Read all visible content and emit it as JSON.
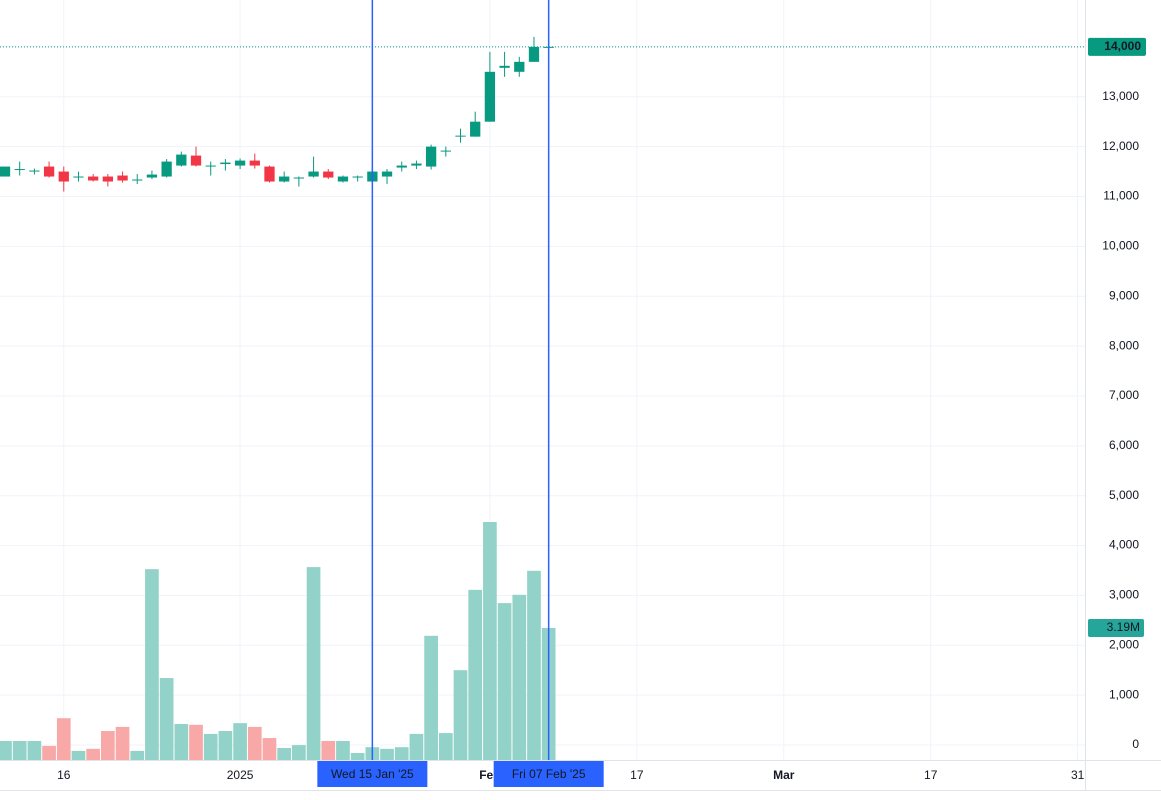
{
  "chart_data": {
    "type": "candlestick",
    "up_color": "#089981",
    "down_color": "#f23645",
    "volume_up_color": "#92d2c8",
    "volume_down_color": "#f7a8a7",
    "crosshair_color": "#2962ff",
    "grid": true,
    "ylim": [
      -300,
      14940
    ],
    "yticks": [
      0,
      {
        "value": 1000,
        "label": "1,000"
      },
      {
        "value": 2000,
        "label": "2,000"
      },
      {
        "value": 3000,
        "label": "3,000"
      },
      {
        "value": 4000,
        "label": "4,000"
      },
      {
        "value": 5000,
        "label": "5,000"
      },
      {
        "value": 6000,
        "label": "6,000"
      },
      {
        "value": 7000,
        "label": "7,000"
      },
      {
        "value": 8000,
        "label": "8,000"
      },
      {
        "value": 9000,
        "label": "9,000"
      },
      {
        "value": 10000,
        "label": "10,000"
      },
      {
        "value": 11000,
        "label": "11,000"
      },
      {
        "value": 12000,
        "label": "12,000"
      },
      {
        "value": 13000,
        "label": "13,000"
      },
      {
        "value": 14000,
        "label": "14,000"
      }
    ],
    "xlim": [
      -0.34,
      73.5
    ],
    "xticks": [
      {
        "value": 4,
        "label": "16"
      },
      {
        "value": 16,
        "label": "2025"
      },
      {
        "value": 33,
        "label": "Feb"
      },
      {
        "value": 43,
        "label": "17"
      },
      {
        "value": 53,
        "label": "Mar"
      },
      {
        "value": 63,
        "label": "17"
      },
      {
        "value": 73,
        "label": "31"
      }
    ],
    "open": [
      11400,
      11550,
      11500,
      11600,
      11500,
      11380,
      11400,
      11400,
      11420,
      11330,
      11380,
      11400,
      11620,
      11820,
      11600,
      11650,
      11620,
      11720,
      11600,
      11300,
      11360,
      11400,
      11500,
      11300,
      11380,
      11300,
      11400,
      11580,
      11620,
      11600,
      11900,
      12200,
      12200,
      12500,
      13580,
      13500,
      13700,
      14000
    ],
    "high": [
      11600,
      11700,
      11560,
      11700,
      11600,
      11500,
      11450,
      11450,
      11500,
      11450,
      11520,
      11750,
      11900,
      12000,
      11700,
      11750,
      11760,
      11860,
      11620,
      11500,
      11400,
      11800,
      11550,
      11420,
      11420,
      11550,
      11550,
      11700,
      11720,
      12040,
      12000,
      12360,
      12700,
      13900,
      13900,
      13800,
      14200,
      14020
    ],
    "low": [
      11400,
      11420,
      11440,
      11380,
      11100,
      11300,
      11300,
      11200,
      11280,
      11250,
      11350,
      11380,
      11600,
      11600,
      11420,
      11520,
      11550,
      11560,
      11280,
      11280,
      11200,
      11380,
      11350,
      11280,
      11300,
      11280,
      11250,
      11500,
      11550,
      11540,
      11800,
      12080,
      12200,
      12500,
      13400,
      13400,
      13700,
      13980
    ],
    "close": [
      11600,
      11550,
      11520,
      11400,
      11300,
      11400,
      11320,
      11300,
      11320,
      11340,
      11440,
      11700,
      11840,
      11620,
      11620,
      11680,
      11720,
      11620,
      11300,
      11400,
      11380,
      11500,
      11380,
      11400,
      11400,
      11500,
      11500,
      11620,
      11660,
      12000,
      11920,
      12220,
      12500,
      13500,
      13620,
      13700,
      14000,
      14000
    ],
    "volume": [
      0.46,
      0.46,
      0.46,
      0.34,
      1.01,
      0.22,
      0.27,
      0.7,
      0.8,
      0.22,
      4.61,
      1.98,
      0.87,
      0.85,
      0.63,
      0.7,
      0.89,
      0.8,
      0.53,
      0.29,
      0.36,
      4.66,
      0.46,
      0.46,
      0.17,
      0.31,
      0.27,
      0.31,
      0.63,
      3.0,
      0.65,
      2.17,
      4.11,
      5.75,
      3.79,
      3.99,
      4.57,
      3.19
    ],
    "volume_ylim": [
      0,
      18.36
    ],
    "last_price": {
      "value": 14000,
      "label": "14,000"
    },
    "last_volume": {
      "value": 3.19,
      "label": "3.19M"
    },
    "markers": [
      {
        "x": 25,
        "label": "Wed 15 Jan '25"
      },
      {
        "x": 37,
        "label": "Fri 07 Feb '25"
      }
    ]
  }
}
